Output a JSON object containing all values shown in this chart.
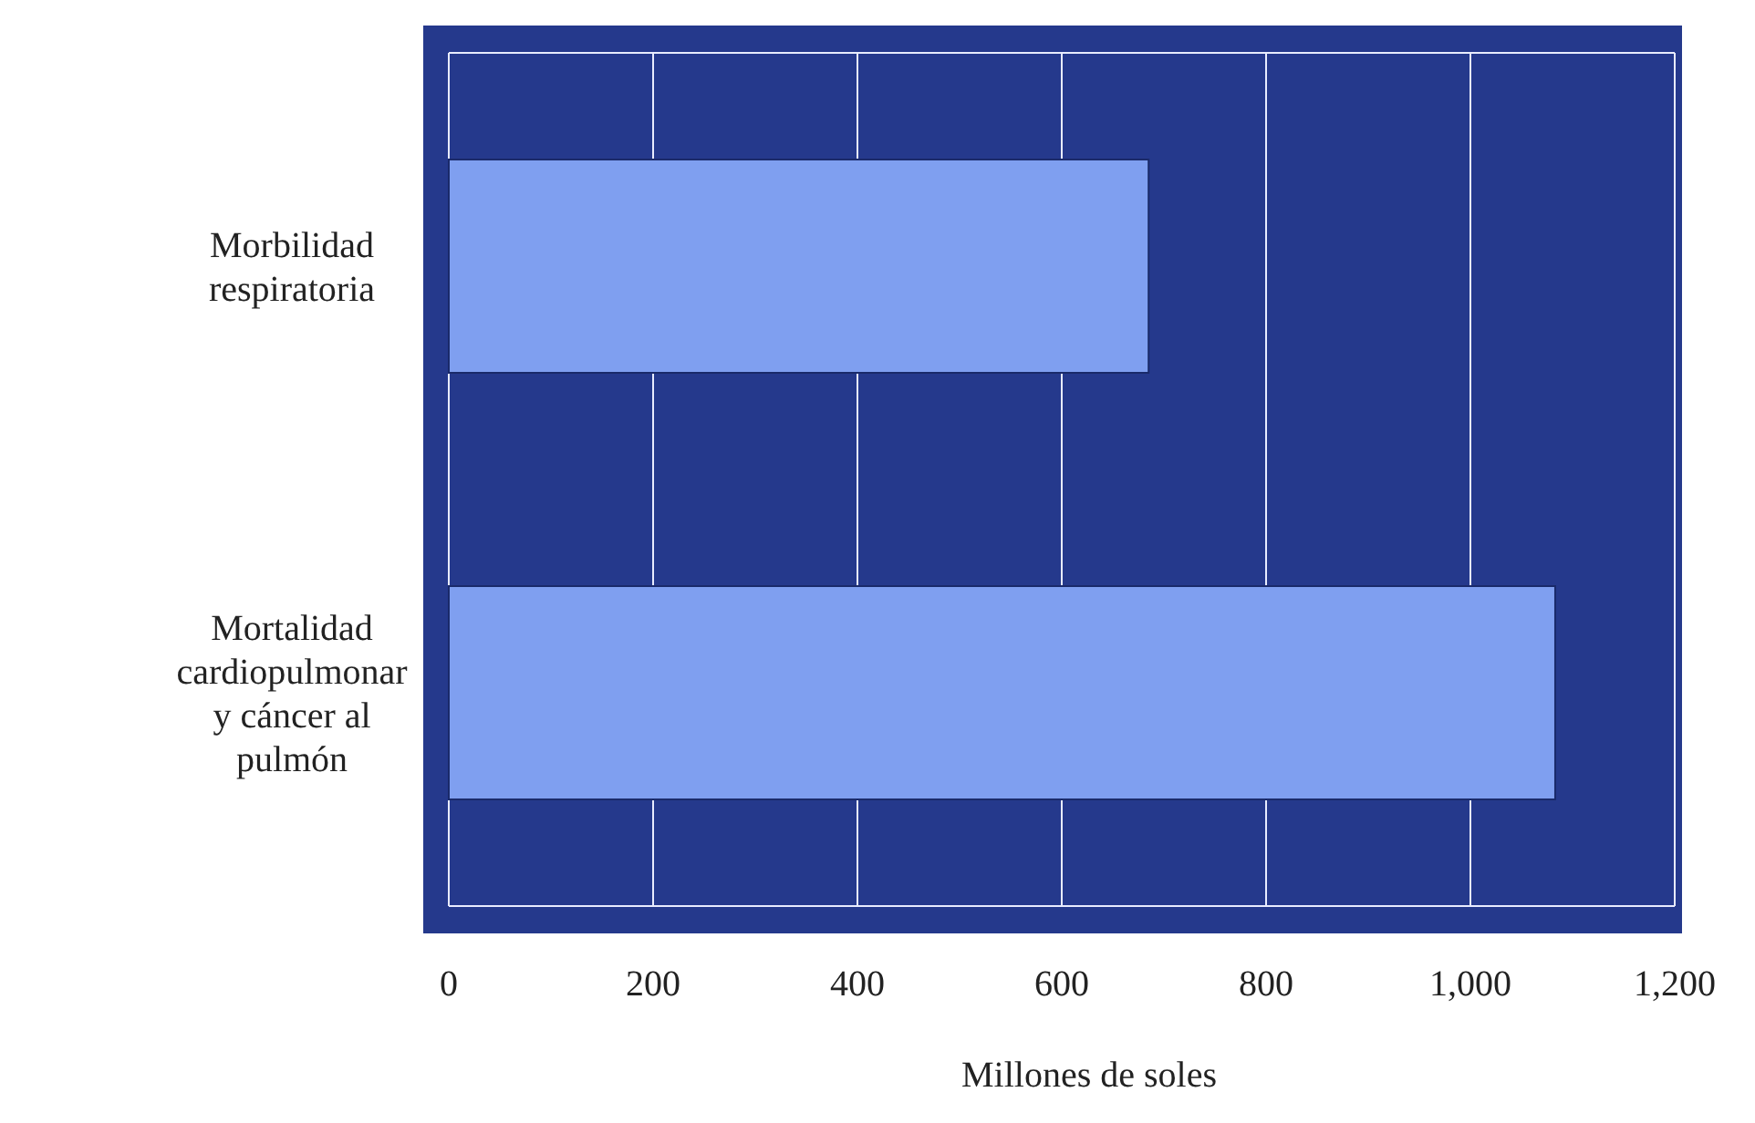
{
  "chart_data": {
    "type": "bar",
    "orientation": "horizontal",
    "xlabel": "Millones de soles",
    "categories": [
      "Morbilidad respiratoria",
      "Mortalidad cardiopulmonar y cáncer al pulmón"
    ],
    "values": [
      685,
      1083
    ],
    "color": "#7f9ff0",
    "xlim": [
      0,
      1200
    ],
    "xticks": [
      0,
      200,
      400,
      600,
      800,
      {
        "value": 1000,
        "label": "1,000"
      },
      {
        "value": 1200,
        "label": "1,200"
      }
    ],
    "grid": "x"
  }
}
